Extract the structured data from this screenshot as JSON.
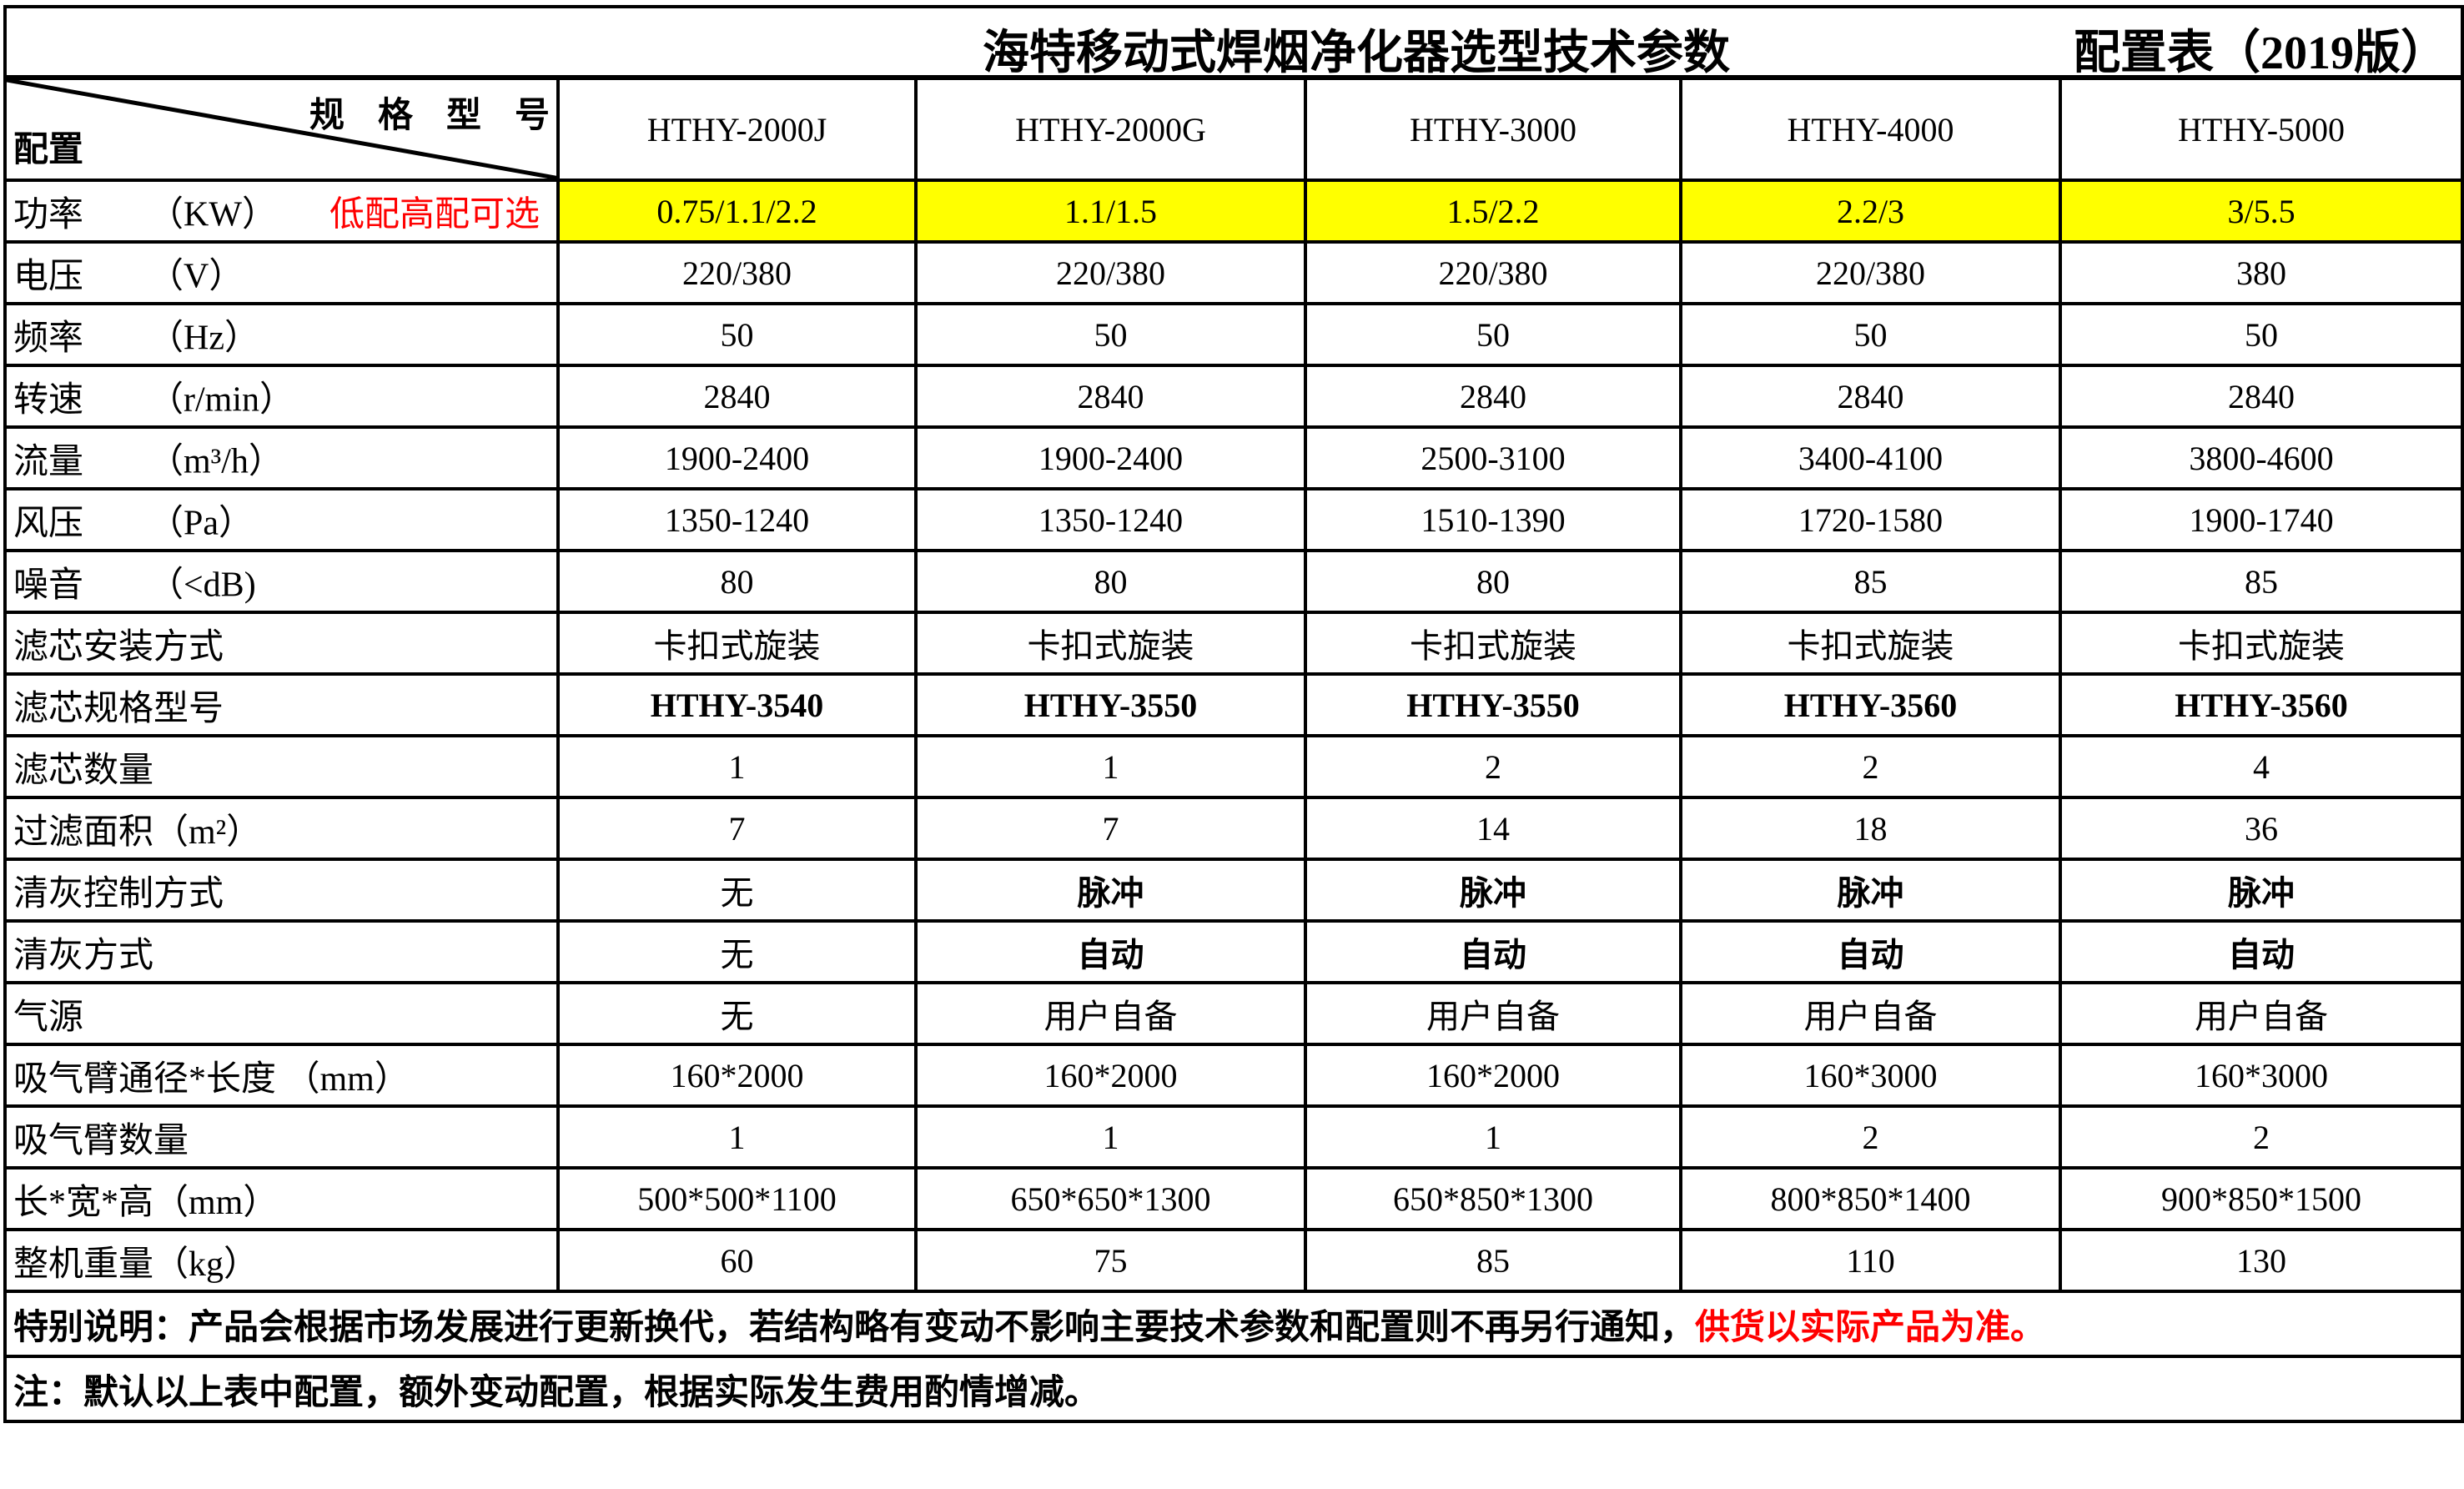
{
  "title": {
    "main": "海特移动式焊烟净化器选型技术参数",
    "sub": "配置表（2019版）"
  },
  "header": {
    "spec_label": "规格型号",
    "config_label": "配置",
    "models": [
      "HTHY-2000J",
      "HTHY-2000G",
      "HTHY-3000",
      "HTHY-4000",
      "HTHY-5000"
    ]
  },
  "rows": [
    {
      "label": "功率",
      "unit": "（KW）",
      "note": "低配高配可选",
      "highlight": true,
      "values": [
        "0.75/1.1/2.2",
        "1.1/1.5",
        "1.5/2.2",
        "2.2/3",
        "3/5.5"
      ]
    },
    {
      "label": "电压",
      "unit": "（V）",
      "values": [
        "220/380",
        "220/380",
        "220/380",
        "220/380",
        "380"
      ]
    },
    {
      "label": "频率",
      "unit": "（Hz）",
      "values": [
        "50",
        "50",
        "50",
        "50",
        "50"
      ]
    },
    {
      "label": "转速",
      "unit": "（r/min）",
      "values": [
        "2840",
        "2840",
        "2840",
        "2840",
        "2840"
      ]
    },
    {
      "label": "流量",
      "unit": "（m³/h）",
      "values": [
        "1900-2400",
        "1900-2400",
        "2500-3100",
        "3400-4100",
        "3800-4600"
      ]
    },
    {
      "label": "风压",
      "unit": "（Pa）",
      "values": [
        "1350-1240",
        "1350-1240",
        "1510-1390",
        "1720-1580",
        "1900-1740"
      ]
    },
    {
      "label": "噪音",
      "unit": "（<dB)",
      "values": [
        "80",
        "80",
        "80",
        "85",
        "85"
      ]
    },
    {
      "label": "滤芯安装方式",
      "values": [
        "卡扣式旋装",
        "卡扣式旋装",
        "卡扣式旋装",
        "卡扣式旋装",
        "卡扣式旋装"
      ]
    },
    {
      "label": "滤芯规格型号",
      "bold": [
        true,
        true,
        true,
        true,
        true
      ],
      "values": [
        "HTHY-3540",
        "HTHY-3550",
        "HTHY-3550",
        "HTHY-3560",
        "HTHY-3560"
      ]
    },
    {
      "label": "滤芯数量",
      "values": [
        "1",
        "1",
        "2",
        "2",
        "4"
      ]
    },
    {
      "label": "过滤面积（m²）",
      "values": [
        "7",
        "7",
        "14",
        "18",
        "36"
      ]
    },
    {
      "label": "清灰控制方式",
      "bold": [
        false,
        true,
        true,
        true,
        true
      ],
      "values": [
        "无",
        "脉冲",
        "脉冲",
        "脉冲",
        "脉冲"
      ]
    },
    {
      "label": "清灰方式",
      "bold": [
        false,
        true,
        true,
        true,
        true
      ],
      "values": [
        "无",
        "自动",
        "自动",
        "自动",
        "自动"
      ]
    },
    {
      "label": "气源",
      "values": [
        "无",
        "用户自备",
        "用户自备",
        "用户自备",
        "用户自备"
      ]
    },
    {
      "label": "吸气臂通径*长度 （mm）",
      "values": [
        "160*2000",
        "160*2000",
        "160*2000",
        "160*3000",
        "160*3000"
      ]
    },
    {
      "label": "吸气臂数量",
      "values": [
        "1",
        "1",
        "1",
        "2",
        "2"
      ]
    },
    {
      "label": "长*宽*高（mm）",
      "values": [
        "500*500*1100",
        "650*650*1300",
        "650*850*1300",
        "800*850*1400",
        "900*850*1500"
      ]
    },
    {
      "label": "整机重量（kg）",
      "values": [
        "60",
        "75",
        "85",
        "110",
        "130"
      ]
    }
  ],
  "footer": {
    "special_note": "特别说明：产品会根据市场发展进行更新换代，若结构略有变动不影响主要技术参数和配置则不再另行通知，",
    "special_note_red": "供货以实际产品为准。",
    "note": "注：默认以上表中配置，额外变动配置，根据实际发生费用酌情增减。"
  },
  "colors": {
    "highlight": "#ffff00",
    "red": "#ff0000"
  }
}
